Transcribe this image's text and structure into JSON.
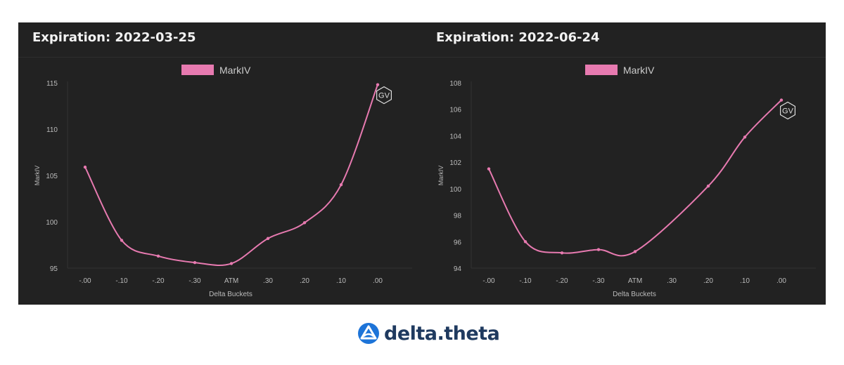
{
  "brand": {
    "name": "delta.theta",
    "logo_color": "#1d74d8",
    "text_color": "#1f3a5f"
  },
  "colors": {
    "background": "#222222",
    "line": "#e77ab0",
    "axis_text": "#bbbbbb"
  },
  "chart_data": [
    {
      "type": "line",
      "title": "Expiration: 2022-03-25",
      "xlabel": "Delta Buckets",
      "ylabel": "MarkIV",
      "categories": [
        "-.00",
        "-.10",
        "-.20",
        "-.30",
        "ATM",
        ".30",
        ".20",
        ".10",
        ".00"
      ],
      "series": [
        {
          "name": "MarkIV",
          "values": [
            105.9,
            98.0,
            96.3,
            95.6,
            95.5,
            98.2,
            99.9,
            104.0,
            114.8
          ]
        }
      ],
      "ylim": [
        95,
        115
      ],
      "yticks": [
        95,
        100,
        105,
        110,
        115
      ],
      "grid": false,
      "legend": "top-center",
      "badge": "GV"
    },
    {
      "type": "line",
      "title": "Expiration: 2022-06-24",
      "xlabel": "Delta Buckets",
      "ylabel": "MarkIV",
      "categories": [
        "-.00",
        "-.10",
        "-.20",
        "-.30",
        "ATM",
        ".30",
        ".20",
        ".10",
        ".00"
      ],
      "series": [
        {
          "name": "MarkIV",
          "values": [
            101.5,
            96.0,
            95.15,
            95.4,
            95.25,
            null,
            100.2,
            103.9,
            106.7
          ]
        }
      ],
      "ylim": [
        94,
        108
      ],
      "yticks": [
        94,
        96,
        98,
        100,
        102,
        104,
        106,
        108
      ],
      "grid": false,
      "legend": "top-center",
      "badge": "GV"
    }
  ]
}
